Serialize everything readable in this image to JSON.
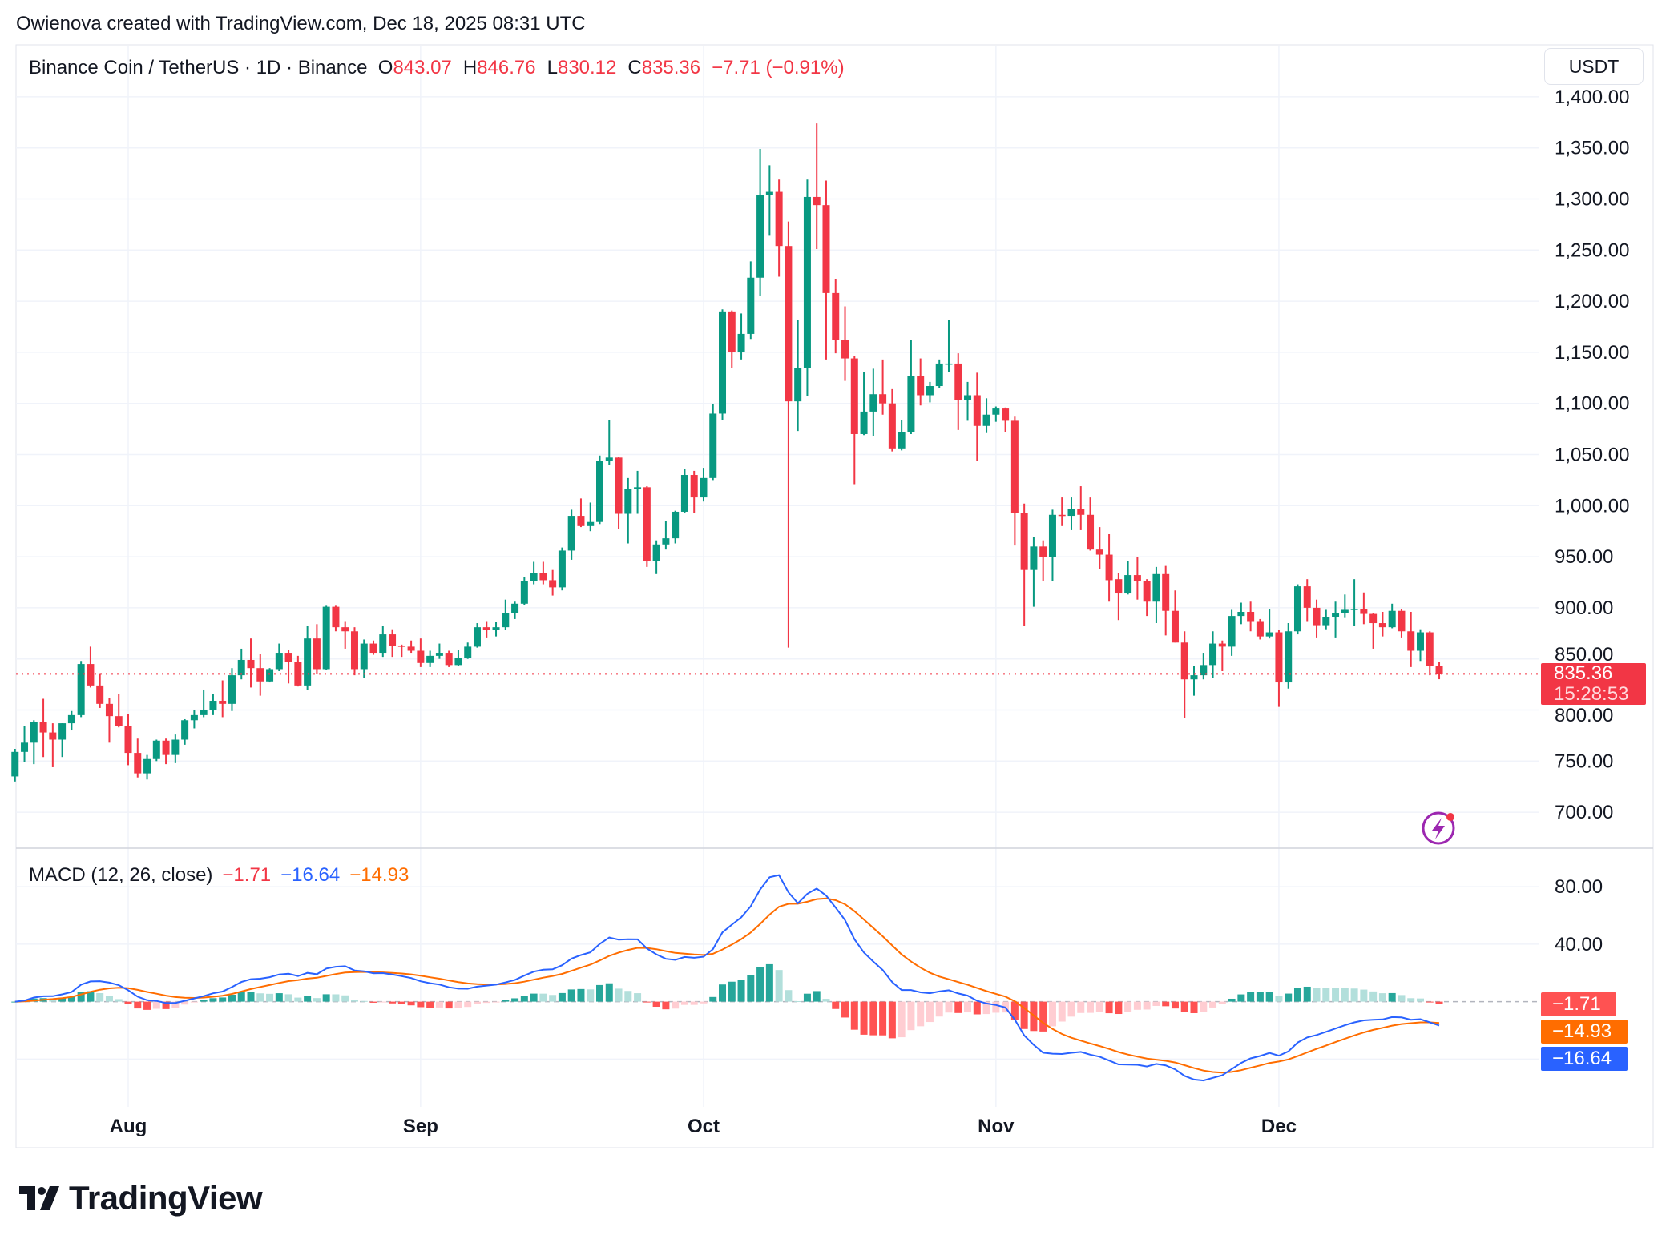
{
  "caption": "Owienova created with TradingView.com, Dec 18, 2025 08:31 UTC",
  "legend": {
    "symbol": "Binance Coin / TetherUS · 1D · Binance",
    "o_label": "O",
    "o": "843.07",
    "h_label": "H",
    "h": "846.76",
    "l_label": "L",
    "l": "830.12",
    "c_label": "C",
    "c": "835.36",
    "change": "−7.71 (−0.91%)"
  },
  "currency_button": "USDT",
  "price_label": {
    "value": "835.36",
    "countdown": "15:28:53"
  },
  "macd_legend": {
    "title": "MACD (12, 26, close)",
    "hist": "−1.71",
    "macd": "−16.64",
    "signal": "−14.93"
  },
  "macd_labels": {
    "hist": "−1.71",
    "signal": "−14.93",
    "macd": "−16.64"
  },
  "logo_text": "TradingView",
  "icons": {
    "alert": "lightning-bolt-icon",
    "logo": "tradingview-logo-icon"
  },
  "colors": {
    "up": "#089981",
    "down": "#f23645",
    "macd": "#2962ff",
    "signal": "#ff6d00",
    "hist_up_strong": "#26a69a",
    "hist_up_weak": "#b2dfdb",
    "hist_down_strong": "#ff5252",
    "hist_down_weak": "#ffcdd2"
  },
  "chart_data": {
    "type": "candlestick",
    "symbol": "BNBUSDT",
    "interval": "1D",
    "ylim": [
      680,
      1400
    ],
    "grid": true,
    "price_ticks": [
      "1,400.00",
      "1,350.00",
      "1,300.00",
      "1,250.00",
      "1,200.00",
      "1,150.00",
      "1,100.00",
      "1,050.00",
      "1,000.00",
      "950.00",
      "900.00",
      "850.00",
      "800.00",
      "750.00",
      "700.00"
    ],
    "time_ticks": [
      {
        "label": "Aug",
        "date": "2025-08-01"
      },
      {
        "label": "Sep",
        "date": "2025-09-01"
      },
      {
        "label": "Oct",
        "date": "2025-10-01"
      },
      {
        "label": "Nov",
        "date": "2025-11-01"
      },
      {
        "label": "Dec",
        "date": "2025-12-01"
      }
    ],
    "last_price": 835.36,
    "candles_fields": [
      "date",
      "open",
      "high",
      "low",
      "close"
    ],
    "candles": [
      [
        "2025-07-20",
        735,
        762,
        730,
        759
      ],
      [
        "2025-07-21",
        759,
        784,
        749,
        768
      ],
      [
        "2025-07-22",
        768,
        790,
        747,
        788
      ],
      [
        "2025-07-23",
        788,
        811,
        754,
        778
      ],
      [
        "2025-07-24",
        778,
        787,
        744,
        771
      ],
      [
        "2025-07-25",
        771,
        787,
        754,
        787
      ],
      [
        "2025-07-26",
        787,
        799,
        780,
        795
      ],
      [
        "2025-07-27",
        795,
        848,
        793,
        845
      ],
      [
        "2025-07-28",
        845,
        862,
        822,
        824
      ],
      [
        "2025-07-29",
        824,
        836,
        802,
        806
      ],
      [
        "2025-07-30",
        806,
        812,
        768,
        794
      ],
      [
        "2025-07-31",
        794,
        816,
        783,
        784
      ],
      [
        "2025-08-01",
        784,
        796,
        746,
        758
      ],
      [
        "2025-08-02",
        758,
        772,
        734,
        738
      ],
      [
        "2025-08-03",
        738,
        756,
        732,
        752
      ],
      [
        "2025-08-04",
        752,
        771,
        750,
        770
      ],
      [
        "2025-08-05",
        770,
        772,
        747,
        756
      ],
      [
        "2025-08-06",
        756,
        776,
        748,
        771
      ],
      [
        "2025-08-07",
        771,
        791,
        766,
        790
      ],
      [
        "2025-08-08",
        790,
        800,
        782,
        795
      ],
      [
        "2025-08-09",
        795,
        820,
        793,
        800
      ],
      [
        "2025-08-10",
        800,
        816,
        795,
        809
      ],
      [
        "2025-08-11",
        809,
        829,
        793,
        806
      ],
      [
        "2025-08-12",
        806,
        841,
        799,
        834
      ],
      [
        "2025-08-13",
        834,
        860,
        830,
        849
      ],
      [
        "2025-08-14",
        849,
        870,
        822,
        841
      ],
      [
        "2025-08-15",
        841,
        855,
        814,
        828
      ],
      [
        "2025-08-16",
        828,
        841,
        827,
        840
      ],
      [
        "2025-08-17",
        840,
        865,
        838,
        856
      ],
      [
        "2025-08-18",
        856,
        859,
        826,
        847
      ],
      [
        "2025-08-19",
        847,
        853,
        823,
        824
      ],
      [
        "2025-08-20",
        824,
        882,
        820,
        870
      ],
      [
        "2025-08-21",
        870,
        884,
        835,
        840
      ],
      [
        "2025-08-22",
        840,
        902,
        839,
        901
      ],
      [
        "2025-08-23",
        901,
        902,
        877,
        881
      ],
      [
        "2025-08-24",
        881,
        887,
        860,
        877
      ],
      [
        "2025-08-25",
        877,
        881,
        834,
        840
      ],
      [
        "2025-08-26",
        840,
        869,
        831,
        865
      ],
      [
        "2025-08-27",
        865,
        868,
        854,
        856
      ],
      [
        "2025-08-28",
        856,
        882,
        852,
        874
      ],
      [
        "2025-08-29",
        874,
        879,
        852,
        863
      ],
      [
        "2025-08-30",
        863,
        864,
        852,
        862
      ],
      [
        "2025-08-31",
        862,
        868,
        856,
        858
      ],
      [
        "2025-09-01",
        858,
        870,
        842,
        846
      ],
      [
        "2025-09-02",
        846,
        858,
        842,
        853
      ],
      [
        "2025-09-03",
        853,
        865,
        850,
        856
      ],
      [
        "2025-09-04",
        856,
        858,
        842,
        844
      ],
      [
        "2025-09-05",
        844,
        859,
        843,
        851
      ],
      [
        "2025-09-06",
        851,
        866,
        850,
        862
      ],
      [
        "2025-09-07",
        862,
        885,
        861,
        881
      ],
      [
        "2025-09-08",
        881,
        887,
        871,
        878
      ],
      [
        "2025-09-09",
        878,
        886,
        872,
        881
      ],
      [
        "2025-09-10",
        881,
        908,
        878,
        895
      ],
      [
        "2025-09-11",
        895,
        906,
        889,
        904
      ],
      [
        "2025-09-12",
        904,
        930,
        903,
        926
      ],
      [
        "2025-09-13",
        926,
        945,
        923,
        934
      ],
      [
        "2025-09-14",
        934,
        945,
        923,
        927
      ],
      [
        "2025-09-15",
        927,
        937,
        912,
        920
      ],
      [
        "2025-09-16",
        920,
        959,
        917,
        956
      ],
      [
        "2025-09-17",
        956,
        996,
        947,
        990
      ],
      [
        "2025-09-18",
        990,
        1007,
        979,
        980
      ],
      [
        "2025-09-19",
        980,
        1003,
        975,
        984
      ],
      [
        "2025-09-20",
        984,
        1049,
        982,
        1044
      ],
      [
        "2025-09-21",
        1044,
        1084,
        1040,
        1047
      ],
      [
        "2025-09-22",
        1047,
        1048,
        977,
        992
      ],
      [
        "2025-09-23",
        992,
        1027,
        963,
        1016
      ],
      [
        "2025-09-24",
        1016,
        1034,
        992,
        1018
      ],
      [
        "2025-09-25",
        1018,
        1019,
        940,
        946
      ],
      [
        "2025-09-26",
        946,
        966,
        933,
        962
      ],
      [
        "2025-09-27",
        962,
        985,
        957,
        968
      ],
      [
        "2025-09-28",
        968,
        995,
        963,
        994
      ],
      [
        "2025-09-29",
        994,
        1036,
        993,
        1030
      ],
      [
        "2025-09-30",
        1030,
        1034,
        993,
        1008
      ],
      [
        "2025-10-01",
        1008,
        1037,
        1004,
        1027
      ],
      [
        "2025-10-02",
        1027,
        1099,
        1025,
        1090
      ],
      [
        "2025-10-03",
        1090,
        1192,
        1084,
        1190
      ],
      [
        "2025-10-04",
        1190,
        1191,
        1135,
        1150
      ],
      [
        "2025-10-05",
        1150,
        1188,
        1143,
        1168
      ],
      [
        "2025-10-06",
        1168,
        1239,
        1163,
        1223
      ],
      [
        "2025-10-07",
        1223,
        1349,
        1205,
        1304
      ],
      [
        "2025-10-08",
        1304,
        1333,
        1264,
        1307
      ],
      [
        "2025-10-09",
        1307,
        1319,
        1224,
        1254
      ],
      [
        "2025-10-10",
        1254,
        1278,
        861,
        1102
      ],
      [
        "2025-10-11",
        1102,
        1182,
        1073,
        1135
      ],
      [
        "2025-10-12",
        1135,
        1319,
        1107,
        1302
      ],
      [
        "2025-10-13",
        1302,
        1374,
        1251,
        1294
      ],
      [
        "2025-10-14",
        1294,
        1318,
        1143,
        1208
      ],
      [
        "2025-10-15",
        1208,
        1222,
        1149,
        1162
      ],
      [
        "2025-10-16",
        1162,
        1195,
        1122,
        1144
      ],
      [
        "2025-10-17",
        1144,
        1146,
        1021,
        1070
      ],
      [
        "2025-10-18",
        1070,
        1131,
        1069,
        1092
      ],
      [
        "2025-10-19",
        1092,
        1134,
        1068,
        1109
      ],
      [
        "2025-10-20",
        1109,
        1143,
        1089,
        1100
      ],
      [
        "2025-10-21",
        1100,
        1114,
        1053,
        1056
      ],
      [
        "2025-10-22",
        1056,
        1084,
        1054,
        1072
      ],
      [
        "2025-10-23",
        1072,
        1162,
        1070,
        1127
      ],
      [
        "2025-10-24",
        1127,
        1144,
        1098,
        1108
      ],
      [
        "2025-10-25",
        1108,
        1121,
        1101,
        1117
      ],
      [
        "2025-10-26",
        1117,
        1143,
        1115,
        1139
      ],
      [
        "2025-10-27",
        1139,
        1182,
        1131,
        1139
      ],
      [
        "2025-10-28",
        1139,
        1149,
        1074,
        1103
      ],
      [
        "2025-10-29",
        1103,
        1121,
        1083,
        1108
      ],
      [
        "2025-10-30",
        1108,
        1130,
        1044,
        1078
      ],
      [
        "2025-10-31",
        1078,
        1105,
        1071,
        1089
      ],
      [
        "2025-11-01",
        1089,
        1097,
        1082,
        1095
      ],
      [
        "2025-11-02",
        1095,
        1096,
        1072,
        1083
      ],
      [
        "2025-11-03",
        1083,
        1087,
        961,
        993
      ],
      [
        "2025-11-04",
        993,
        1002,
        882,
        937
      ],
      [
        "2025-11-05",
        937,
        969,
        901,
        960
      ],
      [
        "2025-11-06",
        960,
        966,
        926,
        950
      ],
      [
        "2025-11-07",
        950,
        996,
        926,
        991
      ],
      [
        "2025-11-08",
        991,
        1008,
        980,
        990
      ],
      [
        "2025-11-09",
        990,
        1008,
        976,
        997
      ],
      [
        "2025-11-10",
        997,
        1019,
        976,
        991
      ],
      [
        "2025-11-11",
        991,
        1008,
        956,
        957
      ],
      [
        "2025-11-12",
        957,
        979,
        938,
        952
      ],
      [
        "2025-11-13",
        952,
        972,
        906,
        927
      ],
      [
        "2025-11-14",
        928,
        934,
        888,
        914
      ],
      [
        "2025-11-15",
        914,
        946,
        913,
        932
      ],
      [
        "2025-11-16",
        932,
        950,
        908,
        926
      ],
      [
        "2025-11-17",
        926,
        928,
        892,
        906
      ],
      [
        "2025-11-18",
        906,
        940,
        885,
        933
      ],
      [
        "2025-11-19",
        933,
        941,
        873,
        897
      ],
      [
        "2025-11-20",
        897,
        917,
        866,
        866
      ],
      [
        "2025-11-21",
        866,
        877,
        792,
        830
      ],
      [
        "2025-11-22",
        830,
        843,
        814,
        834
      ],
      [
        "2025-11-23",
        834,
        856,
        830,
        844
      ],
      [
        "2025-11-24",
        844,
        877,
        831,
        865
      ],
      [
        "2025-11-25",
        865,
        868,
        838,
        862
      ],
      [
        "2025-11-26",
        862,
        898,
        853,
        892
      ],
      [
        "2025-11-27",
        892,
        905,
        884,
        896
      ],
      [
        "2025-11-28",
        896,
        906,
        877,
        887
      ],
      [
        "2025-11-29",
        887,
        889,
        869,
        872
      ],
      [
        "2025-11-30",
        872,
        899,
        870,
        876
      ],
      [
        "2025-12-01",
        876,
        878,
        803,
        827
      ],
      [
        "2025-12-02",
        827,
        885,
        821,
        877
      ],
      [
        "2025-12-03",
        877,
        923,
        874,
        921
      ],
      [
        "2025-12-04",
        921,
        928,
        887,
        900
      ],
      [
        "2025-12-05",
        900,
        908,
        871,
        883
      ],
      [
        "2025-12-06",
        883,
        898,
        879,
        891
      ],
      [
        "2025-12-07",
        891,
        906,
        871,
        895
      ],
      [
        "2025-12-08",
        895,
        913,
        890,
        898
      ],
      [
        "2025-12-09",
        898,
        928,
        882,
        899
      ],
      [
        "2025-12-10",
        899,
        915,
        884,
        894
      ],
      [
        "2025-12-11",
        894,
        895,
        860,
        885
      ],
      [
        "2025-12-12",
        885,
        896,
        872,
        881
      ],
      [
        "2025-12-13",
        881,
        904,
        880,
        897
      ],
      [
        "2025-12-14",
        897,
        899,
        871,
        877
      ],
      [
        "2025-12-15",
        877,
        896,
        842,
        858
      ],
      [
        "2025-12-16",
        858,
        879,
        848,
        876
      ],
      [
        "2025-12-17",
        876,
        877,
        834,
        843.07
      ],
      [
        "2025-12-18",
        843.07,
        846.76,
        830.12,
        835.36
      ]
    ],
    "macd": {
      "fast": 12,
      "slow": 26,
      "signal": 9,
      "source": "close",
      "ylim": [
        -60,
        95
      ],
      "ticks": [
        "80.00",
        "40.00"
      ]
    }
  }
}
